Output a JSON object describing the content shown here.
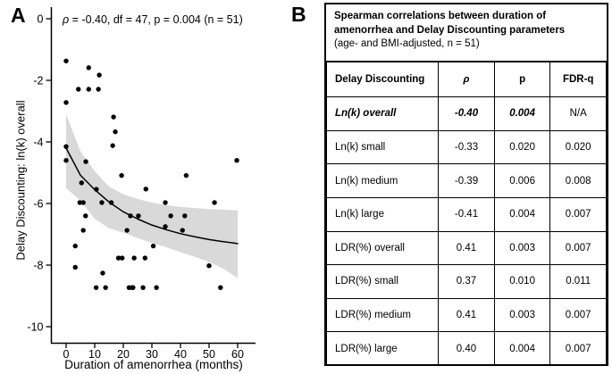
{
  "panelA": {
    "label": "A"
  },
  "panelB": {
    "label": "B",
    "title_bold": "Spearman correlations between duration of amenorrhea and Delay Discounting parameters",
    "title_sub": "(age- and BMI-adjusted, n = 51)",
    "columns": [
      "Delay Discounting",
      "ρ",
      "p",
      "FDR-q"
    ],
    "rows": [
      {
        "label": "Ln(k) overall",
        "rho": "-0.40",
        "p": "0.004",
        "q": "N/A",
        "emph": true
      },
      {
        "label": "Ln(k) small",
        "rho": "-0.33",
        "p": "0.020",
        "q": "0.020"
      },
      {
        "label": "Ln(k) medium",
        "rho": "-0.39",
        "p": "0.006",
        "q": "0.008"
      },
      {
        "label": "Ln(k) large",
        "rho": "-0.41",
        "p": "0.004",
        "q": "0.007"
      },
      {
        "label": "LDR(%) overall",
        "rho": "0.41",
        "p": "0.003",
        "q": "0.007"
      },
      {
        "label": "LDR(%) small",
        "rho": "0.37",
        "p": "0.010",
        "q": "0.011"
      },
      {
        "label": "LDR(%) medium",
        "rho": "0.41",
        "p": "0.003",
        "q": "0.007"
      },
      {
        "label": "LDR(%) large",
        "rho": "0.40",
        "p": "0.004",
        "q": "0.007"
      }
    ]
  },
  "chart_data": {
    "type": "scatter",
    "annotation_rho": "ρ",
    "annotation_rest": " = -0.40, df = 47, p = 0.004 (n = 51)",
    "xlabel": "Duration of amenorrhea (months)",
    "ylabel": "Delay Discounting: ln(k) overall",
    "xlim": [
      -5,
      66
    ],
    "ylim": [
      -10.55,
      0.4
    ],
    "x_ticks": [
      0,
      10,
      20,
      30,
      40,
      50,
      60
    ],
    "y_ticks": [
      0,
      -2,
      -4,
      -6,
      -8,
      -10
    ],
    "grid": false,
    "point_color": "#000000",
    "band_color": "#d9d9d9",
    "points": [
      [
        0,
        -1.37
      ],
      [
        7.9,
        -1.59
      ],
      [
        11.6,
        -1.83
      ],
      [
        4.3,
        -2.29
      ],
      [
        7.9,
        -2.29
      ],
      [
        11.3,
        -2.29
      ],
      [
        0,
        -2.72
      ],
      [
        16.6,
        -3.19
      ],
      [
        17.2,
        -3.67
      ],
      [
        16.3,
        -4.12
      ],
      [
        0,
        -4.15
      ],
      [
        0,
        -4.6
      ],
      [
        6.9,
        -4.64
      ],
      [
        59.7,
        -4.6
      ],
      [
        19.4,
        -5.09
      ],
      [
        42,
        -5.09
      ],
      [
        5.4,
        -5.33
      ],
      [
        10.6,
        -5.54
      ],
      [
        27.9,
        -5.53
      ],
      [
        4.8,
        -5.97
      ],
      [
        6,
        -5.97
      ],
      [
        12.5,
        -5.97
      ],
      [
        15.8,
        -5.97
      ],
      [
        34.7,
        -5.97
      ],
      [
        51.9,
        -5.97
      ],
      [
        6.8,
        -6.4
      ],
      [
        22.5,
        -6.4
      ],
      [
        25.3,
        -6.4
      ],
      [
        36.6,
        -6.4
      ],
      [
        41.5,
        -6.4
      ],
      [
        34.7,
        -6.75
      ],
      [
        6,
        -6.87
      ],
      [
        21.3,
        -6.87
      ],
      [
        40.7,
        -6.87
      ],
      [
        3.2,
        -7.38
      ],
      [
        30.5,
        -7.38
      ],
      [
        18.3,
        -7.77
      ],
      [
        19.6,
        -7.77
      ],
      [
        23.8,
        -7.77
      ],
      [
        27.6,
        -7.77
      ],
      [
        3.2,
        -8.07
      ],
      [
        50,
        -8.02
      ],
      [
        12.8,
        -8.26
      ],
      [
        10.5,
        -8.73
      ],
      [
        13.8,
        -8.73
      ],
      [
        22,
        -8.73
      ],
      [
        23.4,
        -8.73
      ],
      [
        26.9,
        -8.73
      ],
      [
        31.6,
        -8.73
      ],
      [
        54,
        -8.73
      ],
      [
        23,
        -8.73
      ]
    ],
    "fit_line": {
      "x": [
        0,
        5,
        10,
        15,
        20,
        25,
        30,
        35,
        40,
        45,
        50,
        55,
        60
      ],
      "y": [
        -4.2,
        -5.08,
        -5.55,
        -5.95,
        -6.27,
        -6.5,
        -6.7,
        -6.85,
        -6.98,
        -7.08,
        -7.17,
        -7.24,
        -7.3
      ]
    },
    "ci_band": {
      "x": [
        0,
        5,
        10,
        15,
        20,
        25,
        30,
        35,
        40,
        45,
        50,
        55,
        60
      ],
      "top": [
        -3.1,
        -4.3,
        -4.95,
        -5.45,
        -5.7,
        -5.85,
        -5.97,
        -6.05,
        -6.11,
        -6.15,
        -6.18,
        -6.2,
        -6.22
      ],
      "bottom": [
        -5.5,
        -5.9,
        -6.5,
        -6.8,
        -6.95,
        -7.12,
        -7.28,
        -7.42,
        -7.58,
        -7.73,
        -7.9,
        -8.12,
        -8.42
      ]
    }
  }
}
